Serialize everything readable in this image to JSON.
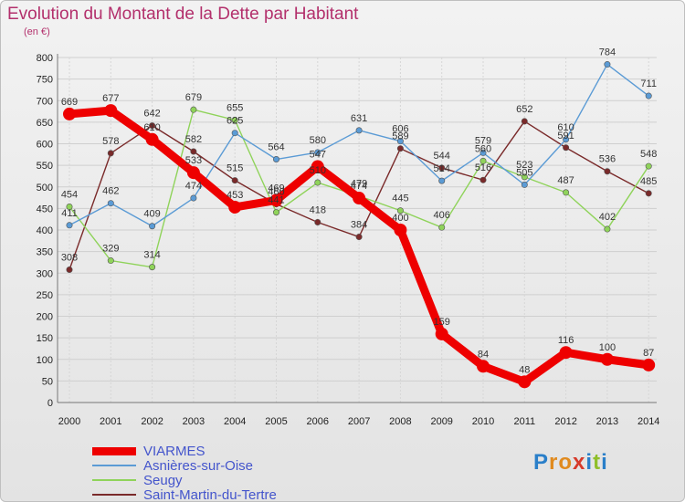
{
  "title": "Evolution du Montant de la Dette par Habitant",
  "unit": "(en €)",
  "logo": "Proxiti",
  "chart_data": {
    "type": "line",
    "title": "Evolution du Montant de la Dette par Habitant",
    "ylabel": "(en €)",
    "xlabel": "",
    "x": [
      "2000",
      "2001",
      "2002",
      "2003",
      "2004",
      "2005",
      "2006",
      "2007",
      "2008",
      "2009",
      "2010",
      "2011",
      "2012",
      "2013",
      "2014"
    ],
    "ylim": [
      0,
      800
    ],
    "yticks": [
      0,
      50,
      100,
      150,
      200,
      250,
      300,
      350,
      400,
      450,
      500,
      550,
      600,
      650,
      700,
      750,
      800
    ],
    "grid": true,
    "legend_position": "bottom-left",
    "series": [
      {
        "name": "VIARMES",
        "color": "#ee0000",
        "values": [
          669,
          677,
          610,
          533,
          453,
          469,
          547,
          474,
          400,
          159,
          84,
          48,
          116,
          100,
          87
        ]
      },
      {
        "name": "Asnières-sur-Oise",
        "color": "#5b9bd5",
        "values": [
          411,
          462,
          409,
          474,
          625,
          564,
          580,
          631,
          606,
          514,
          579,
          505,
          610,
          784,
          711
        ]
      },
      {
        "name": "Seugy",
        "color": "#8fd35a",
        "values": [
          454,
          329,
          314,
          679,
          655,
          441,
          510,
          479,
          445,
          406,
          560,
          523,
          487,
          402,
          548
        ]
      },
      {
        "name": "Saint-Martin-du-Tertre",
        "color": "#7a2a2a",
        "values": [
          308,
          578,
          642,
          582,
          515,
          460,
          418,
          384,
          589,
          544,
          516,
          652,
          591,
          536,
          485
        ]
      }
    ]
  }
}
